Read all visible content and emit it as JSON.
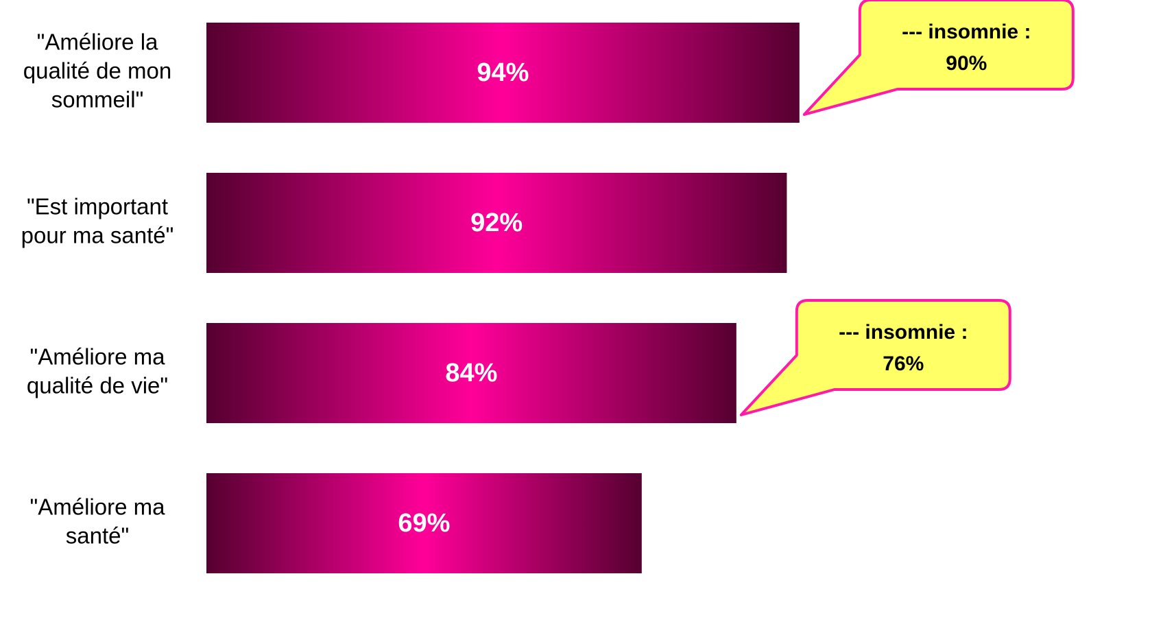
{
  "chart_data": {
    "type": "bar",
    "orientation": "horizontal",
    "categories": [
      [
        "\"Améliore la",
        "qualité de mon",
        "sommeil\""
      ],
      [
        "\"Est important",
        "pour ma santé\""
      ],
      [
        "\"Améliore ma",
        "qualité de vie\""
      ],
      [
        "\"Améliore ma",
        "santé\""
      ]
    ],
    "values": [
      94,
      92,
      84,
      69
    ],
    "value_labels": [
      "94%",
      "92%",
      "84%",
      "69%"
    ],
    "xlim": [
      0,
      100
    ],
    "colors": {
      "edge": "#560030",
      "center": "#ff0099"
    },
    "annotations": [
      [
        "--- insomnie :",
        "90%"
      ],
      null,
      [
        "--- insomnie :",
        "76%"
      ],
      null
    ],
    "annotation_style": {
      "fill": "#ffff66",
      "stroke": "#ff1aa8"
    }
  }
}
